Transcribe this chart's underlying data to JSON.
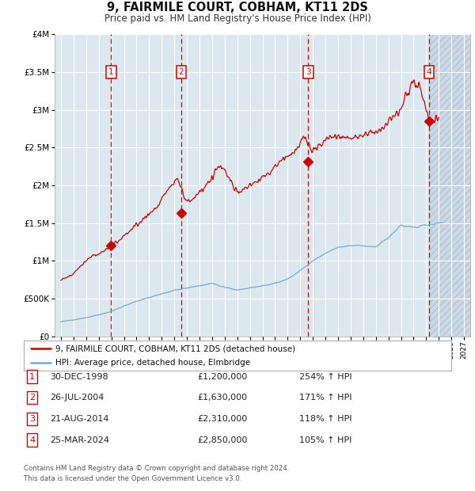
{
  "title": "9, FAIRMILE COURT, COBHAM, KT11 2DS",
  "subtitle": "Price paid vs. HM Land Registry's House Price Index (HPI)",
  "ylim": [
    0,
    4000000
  ],
  "xlim_start": 1994.5,
  "xlim_end": 2027.5,
  "sale_color": "#cc0000",
  "hpi_color": "#7aa8cc",
  "background_color": "#ffffff",
  "plot_bg_color": "#dce8f0",
  "legend_line1": "9, FAIRMILE COURT, COBHAM, KT11 2DS (detached house)",
  "legend_line2": "HPI: Average price, detached house, Elmbridge",
  "transactions": [
    {
      "num": 1,
      "date": "30-DEC-1998",
      "year": 1998.99,
      "price": 1200000,
      "pct": "254%",
      "dir": "↑"
    },
    {
      "num": 2,
      "date": "26-JUL-2004",
      "year": 2004.56,
      "price": 1630000,
      "pct": "171%",
      "dir": "↑"
    },
    {
      "num": 3,
      "date": "21-AUG-2014",
      "year": 2014.64,
      "price": 2310000,
      "pct": "118%",
      "dir": "↑"
    },
    {
      "num": 4,
      "date": "25-MAR-2024",
      "year": 2024.23,
      "price": 2850000,
      "pct": "105%",
      "dir": "↑"
    }
  ],
  "footer1": "Contains HM Land Registry data © Crown copyright and database right 2024.",
  "footer2": "This data is licensed under the Open Government Licence v3.0."
}
